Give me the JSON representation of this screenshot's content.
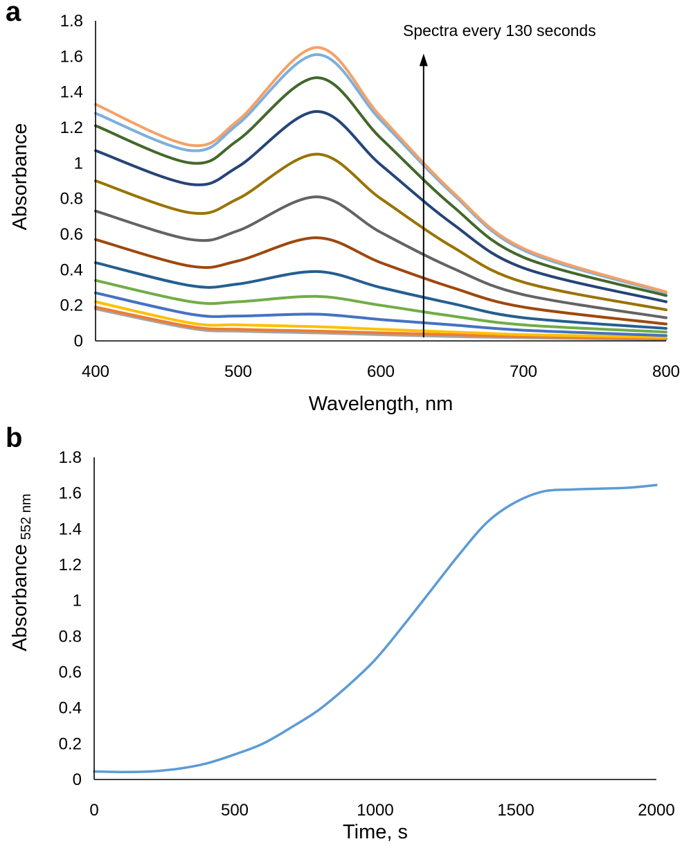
{
  "chart_data": [
    {
      "panel": "a",
      "type": "line",
      "title": "",
      "xlabel": "Wavelength, nm",
      "ylabel": "Absorbance",
      "xlim": [
        400,
        800
      ],
      "ylim": [
        0,
        1.8
      ],
      "xticks": [
        "400",
        "500",
        "600",
        "700",
        "800"
      ],
      "yticks": [
        "0",
        "0.2",
        "0.4",
        "0.6",
        "0.8",
        "1",
        "1.2",
        "1.4",
        "1.6",
        "1.8"
      ],
      "annotation": {
        "text": "Spectra every 130 seconds",
        "arrow_x": 630,
        "arrow_from": 0.02,
        "arrow_to": 1.6
      },
      "x": [
        400,
        467,
        500,
        555,
        600,
        650,
        700,
        800
      ],
      "series": [
        {
          "name": "spectrum-1",
          "color": "#A5A5A5",
          "values": [
            0.18,
            0.07,
            0.055,
            0.045,
            0.035,
            0.025,
            0.018,
            0.008
          ]
        },
        {
          "name": "spectrum-2",
          "color": "#ED7D31",
          "values": [
            0.19,
            0.08,
            0.065,
            0.055,
            0.045,
            0.035,
            0.025,
            0.012
          ]
        },
        {
          "name": "spectrum-3",
          "color": "#FFC000",
          "values": [
            0.22,
            0.1,
            0.09,
            0.08,
            0.065,
            0.05,
            0.035,
            0.02
          ]
        },
        {
          "name": "spectrum-4",
          "color": "#4472C4",
          "values": [
            0.27,
            0.15,
            0.14,
            0.15,
            0.12,
            0.09,
            0.06,
            0.03
          ]
        },
        {
          "name": "spectrum-5",
          "color": "#70AD47",
          "values": [
            0.34,
            0.22,
            0.22,
            0.25,
            0.2,
            0.14,
            0.09,
            0.05
          ]
        },
        {
          "name": "spectrum-6",
          "color": "#255E91",
          "values": [
            0.44,
            0.31,
            0.32,
            0.39,
            0.3,
            0.21,
            0.13,
            0.07
          ]
        },
        {
          "name": "spectrum-7",
          "color": "#9E480E",
          "values": [
            0.57,
            0.42,
            0.45,
            0.58,
            0.44,
            0.3,
            0.19,
            0.095
          ]
        },
        {
          "name": "spectrum-8",
          "color": "#636363",
          "values": [
            0.73,
            0.57,
            0.62,
            0.81,
            0.61,
            0.41,
            0.26,
            0.13
          ]
        },
        {
          "name": "spectrum-9",
          "color": "#997300",
          "values": [
            0.9,
            0.72,
            0.8,
            1.05,
            0.8,
            0.53,
            0.33,
            0.175
          ]
        },
        {
          "name": "spectrum-10",
          "color": "#264478",
          "values": [
            1.07,
            0.88,
            0.98,
            1.29,
            0.99,
            0.66,
            0.41,
            0.22
          ]
        },
        {
          "name": "spectrum-11",
          "color": "#43682B",
          "values": [
            1.21,
            1.0,
            1.13,
            1.48,
            1.14,
            0.76,
            0.47,
            0.255
          ]
        },
        {
          "name": "spectrum-12",
          "color": "#7CAFDD",
          "values": [
            1.28,
            1.07,
            1.22,
            1.61,
            1.24,
            0.83,
            0.51,
            0.27
          ]
        },
        {
          "name": "spectrum-13",
          "color": "#F4A167",
          "values": [
            1.33,
            1.1,
            1.24,
            1.65,
            1.26,
            0.84,
            0.52,
            0.275
          ]
        }
      ]
    },
    {
      "panel": "b",
      "type": "line",
      "title": "",
      "xlabel": "Time, s",
      "ylabel": "Absorbance",
      "ylabel_sub": "552 nm",
      "xlim": [
        0,
        2000
      ],
      "ylim": [
        0,
        1.8
      ],
      "xticks": [
        "0",
        "500",
        "1000",
        "1500",
        "2000"
      ],
      "yticks": [
        "0",
        "0.2",
        "0.4",
        "0.6",
        "0.8",
        "1",
        "1.2",
        "1.4",
        "1.6",
        "1.8"
      ],
      "series": [
        {
          "name": "absorbance-552nm",
          "color": "#5B9BD5",
          "x": [
            0,
            100,
            200,
            300,
            400,
            500,
            600,
            700,
            800,
            900,
            1000,
            1100,
            1200,
            1300,
            1400,
            1500,
            1600,
            1700,
            1800,
            1900,
            2000
          ],
          "values": [
            0.045,
            0.042,
            0.045,
            0.06,
            0.09,
            0.14,
            0.2,
            0.29,
            0.39,
            0.52,
            0.67,
            0.86,
            1.06,
            1.26,
            1.44,
            1.55,
            1.61,
            1.62,
            1.625,
            1.63,
            1.645
          ]
        }
      ]
    }
  ]
}
